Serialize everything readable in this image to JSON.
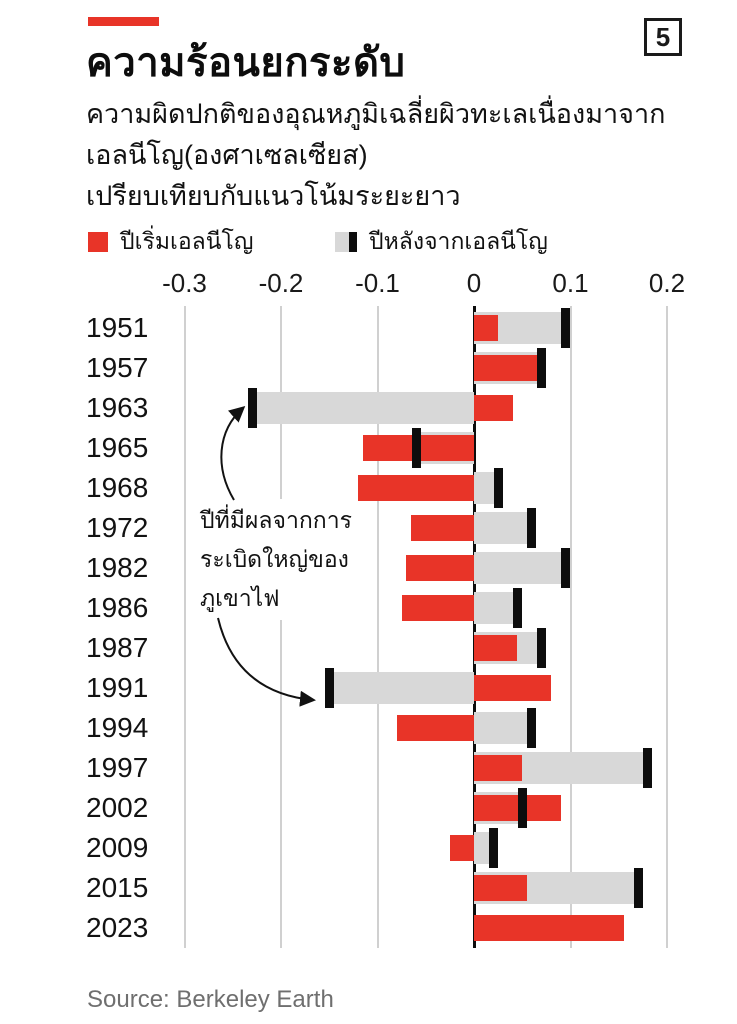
{
  "page": {
    "figure_number": "5",
    "title": "ความร้อนยกระดับ",
    "subtitle_lines": [
      "ความผิดปกติของอุณหภูมิเฉลี่ยผิวทะเลเนื่องมาจาก",
      "เอลนีโญ(องศาเซลเซียส)",
      "เปรียบเทียบกับแนวโน้มระยะยาว"
    ],
    "source": "Source: Berkeley Earth"
  },
  "legend": {
    "start_year_label": "ปีเริ่มเอลนีโญ",
    "after_year_label": "ปีหลังจากเอลนีโญ"
  },
  "annotation": {
    "lines": [
      "ปีที่มีผลจากการ",
      "ระเบิดใหญ่ของ",
      "ภูเขาไฟ"
    ],
    "target_years": [
      "1963",
      "1991"
    ]
  },
  "colors": {
    "accent_red": "#e83428",
    "bar_gray": "#d8d8d8",
    "marker_black": "#0d0d0d",
    "gridline": "#d0d0d0",
    "source_gray": "#6f6f6f"
  },
  "chart_data": {
    "type": "bar",
    "orientation": "horizontal",
    "title": "ความร้อนยกระดับ",
    "subtitle": "ความผิดปกติของอุณหภูมิเฉลี่ยผิวทะเลเนื่องมาจากเอลนีโญ(องศาเซลเซียส) เปรียบเทียบกับแนวโน้มระยะยาว",
    "unit": "องศาเซลเซียส",
    "grid": "vertical",
    "legend_position": "top",
    "xlim": [
      -0.33,
      0.26
    ],
    "x_ticks": [
      {
        "label": "-0.3",
        "value": -0.3
      },
      {
        "label": "-0.2",
        "value": -0.2
      },
      {
        "label": "-0.1",
        "value": -0.1
      },
      {
        "label": "0",
        "value": 0
      },
      {
        "label": "0.1",
        "value": 0.1
      },
      {
        "label": "0.2",
        "value": 0.2
      }
    ],
    "categories": [
      "1951",
      "1957",
      "1963",
      "1965",
      "1968",
      "1972",
      "1982",
      "1986",
      "1987",
      "1991",
      "1994",
      "1997",
      "2002",
      "2009",
      "2015",
      "2023"
    ],
    "series": [
      {
        "name": "ปีเริ่มเอลนีโญ",
        "role": "el-nino-start-year",
        "color": "#e83428",
        "values": [
          0.025,
          0.065,
          0.04,
          -0.115,
          -0.12,
          -0.065,
          -0.07,
          -0.075,
          0.045,
          0.08,
          -0.08,
          0.05,
          0.09,
          -0.025,
          0.055,
          0.155
        ]
      },
      {
        "name": "ปีหลังจากเอลนีโญ",
        "role": "year-after-el-nino",
        "color": "#d8d8d8",
        "marker_color": "#0d0d0d",
        "values": [
          0.095,
          0.07,
          -0.23,
          -0.06,
          0.025,
          0.06,
          0.095,
          0.045,
          0.07,
          -0.15,
          0.06,
          0.18,
          0.05,
          0.02,
          0.17,
          null
        ]
      }
    ]
  }
}
